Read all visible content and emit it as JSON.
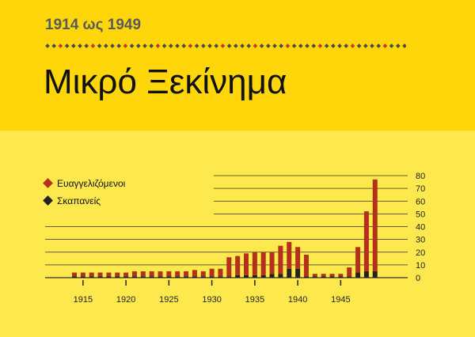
{
  "header": {
    "period": "1914 ως 1949",
    "title": "Μικρό Ξεκίνημα"
  },
  "colors": {
    "evangelists": "#b5301a",
    "pioneers": "#222222",
    "grid": "#333333",
    "dot_red": "#c0392b",
    "dot_dark": "#4a4a4a"
  },
  "chart_data": {
    "type": "bar",
    "stacked": true,
    "x": [
      1914,
      1915,
      1916,
      1917,
      1918,
      1919,
      1920,
      1921,
      1922,
      1923,
      1924,
      1925,
      1926,
      1927,
      1928,
      1929,
      1930,
      1931,
      1932,
      1933,
      1934,
      1935,
      1936,
      1937,
      1938,
      1939,
      1940,
      1941,
      1942,
      1943,
      1944,
      1945,
      1946,
      1947,
      1948,
      1949
    ],
    "x_ticks": [
      1915,
      1920,
      1925,
      1930,
      1935,
      1940,
      1945
    ],
    "y_ticks": [
      0,
      10,
      20,
      30,
      40,
      50,
      60,
      70,
      80
    ],
    "ylim": [
      0,
      80
    ],
    "series": [
      {
        "name": "Σκαπανείς",
        "color": "#222222",
        "values": [
          1,
          1,
          1,
          1,
          1,
          1,
          1,
          1,
          1,
          1,
          1,
          1,
          1,
          1,
          1,
          1,
          1,
          1,
          1,
          2,
          2,
          2,
          2,
          3,
          3,
          7,
          7,
          1,
          1,
          1,
          1,
          1,
          1,
          4,
          5,
          5
        ]
      },
      {
        "name": "Ευαγγελιζόμενοι",
        "color": "#b5301a",
        "values": [
          3,
          3,
          3,
          3,
          3,
          3,
          3,
          4,
          4,
          4,
          4,
          4,
          4,
          4,
          5,
          4,
          6,
          6,
          15,
          15,
          17,
          18,
          18,
          17,
          22,
          21,
          17,
          17,
          2,
          2,
          2,
          2,
          7,
          20,
          47,
          72
        ]
      }
    ],
    "legend": [
      "Ευαγγελιζόμενοι",
      "Σκαπανείς"
    ],
    "legend_placement": "top-left",
    "grid": true,
    "y_axis_side": "right"
  }
}
